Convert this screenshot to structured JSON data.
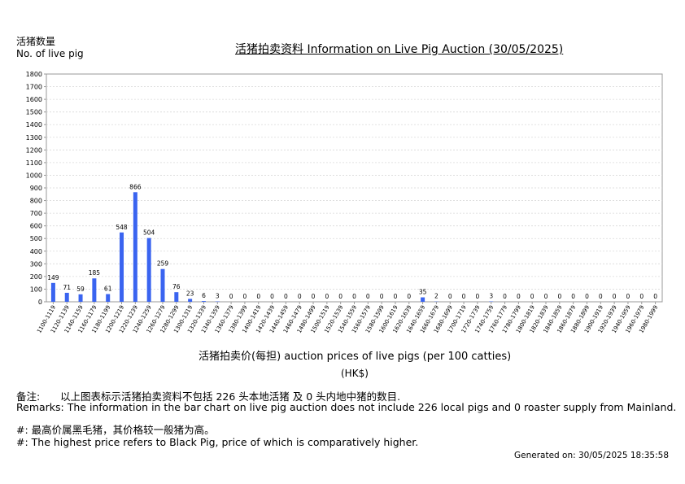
{
  "header": {
    "ylabel_cn": "活猪数量",
    "ylabel_en": "No. of live pig",
    "title": "活猪拍卖资料 Information on Live Pig Auction (30/05/2025)"
  },
  "axis": {
    "xlabel": "活猪拍卖价(每担) auction prices of live pigs (per 100 catties)",
    "unit": "(HK$)"
  },
  "remarks": {
    "label_cn": "备注:",
    "text_cn": "以上图表标示活猪拍卖资料不包括 226 头本地活猪 及 0 头内地中猪的数目.",
    "text_en": "Remarks: The information in the bar chart on live pig auction does not include 226 local pigs and 0 roaster supply from Mainland.",
    "note_cn": "#: 最高价属黑毛猪，其价格较一般猪为高。",
    "note_en": "#: The highest price refers to Black Pig, price of which is comparatively higher."
  },
  "footer": {
    "generated": "Generated on: 30/05/2025 18:35:58"
  },
  "colors": {
    "bar": "#3a64f0",
    "grid": "#d9d9d9",
    "axis": "#999999"
  },
  "chart_data": {
    "type": "bar",
    "ylim": [
      0,
      1800
    ],
    "yticks": [
      0,
      100,
      200,
      300,
      400,
      500,
      600,
      700,
      800,
      900,
      1000,
      1100,
      1200,
      1300,
      1400,
      1500,
      1600,
      1700,
      1800
    ],
    "grid": true,
    "categories": [
      "1100-1119",
      "1120-1139",
      "1140-1159",
      "1160-1179",
      "1180-1199",
      "1200-1219",
      "1220-1239",
      "1240-1259",
      "1260-1279",
      "1280-1299",
      "1300-1319",
      "1320-1339",
      "1340-1359",
      "1360-1379",
      "1380-1399",
      "1400-1419",
      "1420-1439",
      "1440-1459",
      "1460-1479",
      "1480-1499",
      "1500-1519",
      "1520-1539",
      "1540-1559",
      "1560-1579",
      "1580-1599",
      "1600-1619",
      "1620-1639",
      "1640-1659",
      "1660-1679",
      "1680-1699",
      "1700-1719",
      "1720-1739",
      "1740-1759",
      "1760-1779",
      "1780-1799",
      "1800-1819",
      "1820-1839",
      "1840-1859",
      "1860-1879",
      "1880-1899",
      "1900-1919",
      "1920-1939",
      "1940-1959",
      "1960-1979",
      "1980-1999"
    ],
    "values": [
      149,
      71,
      59,
      185,
      61,
      548,
      866,
      504,
      259,
      76,
      23,
      6,
      3,
      0,
      0,
      0,
      0,
      0,
      0,
      0,
      0,
      0,
      0,
      0,
      0,
      0,
      0,
      35,
      2,
      0,
      0,
      0,
      3,
      0,
      0,
      0,
      0,
      0,
      0,
      0,
      0,
      0,
      0,
      0,
      0
    ]
  }
}
